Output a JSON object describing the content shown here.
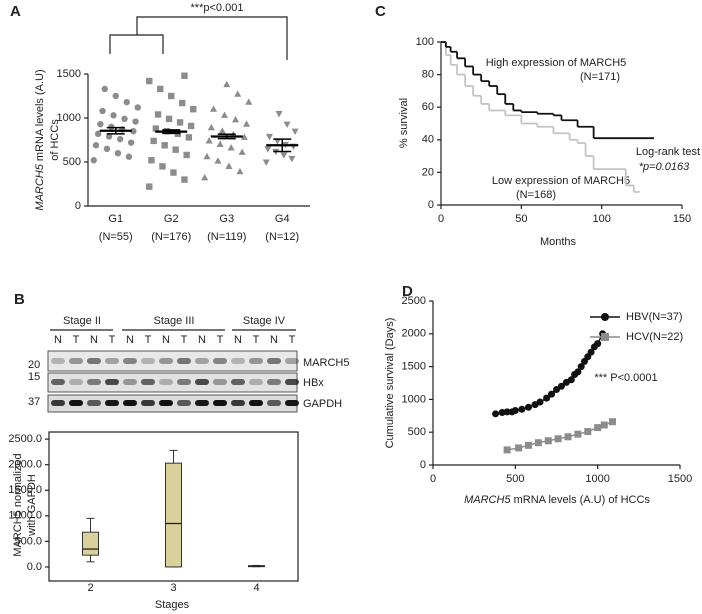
{
  "panel_labels": [
    "A",
    "B",
    "C",
    "D"
  ],
  "blot": {
    "stages": [
      "Stage II",
      "Stage III",
      "Stage IV"
    ],
    "lanes": [
      "N",
      "T",
      "N",
      "T",
      "N",
      "T",
      "N",
      "T",
      "N",
      "T",
      "N",
      "T",
      "N",
      "T"
    ],
    "bands": [
      "MARCH5",
      "HBx",
      "GAPDH"
    ],
    "markers": [
      "15",
      "20",
      "37"
    ]
  },
  "chart_data": [
    {
      "type": "dotplot",
      "annotation": "***p<0.001",
      "ylabel": [
        "MARCH5",
        "mRNA levels (A.U)",
        "of HCCs"
      ],
      "categories": [
        "G1",
        "G2",
        "G3",
        "G4"
      ],
      "sublabels": [
        "(N=55)",
        "(N=176)",
        "(N=119)",
        "(N=12)"
      ],
      "markers": [
        "circle",
        "square",
        "triangle",
        "down-triangle"
      ],
      "color": "#8c8c8c",
      "ylim": [
        0,
        1500
      ],
      "yticks": [
        0,
        500,
        1000,
        1500
      ],
      "groups": [
        {
          "mean": 855,
          "sem": 35,
          "points": [
            520,
            560,
            600,
            650,
            690,
            720,
            760,
            790,
            820,
            850,
            870,
            900,
            930,
            960,
            990,
            1030,
            1080,
            1120,
            1180,
            1250,
            1330
          ]
        },
        {
          "mean": 845,
          "sem": 20,
          "points": [
            220,
            300,
            380,
            450,
            520,
            580,
            640,
            690,
            740,
            780,
            820,
            850,
            880,
            910,
            950,
            990,
            1040,
            1100,
            1170,
            1250,
            1330,
            1420,
            1480
          ]
        },
        {
          "mean": 790,
          "sem": 25,
          "points": [
            320,
            390,
            450,
            510,
            560,
            610,
            660,
            700,
            740,
            780,
            810,
            850,
            890,
            930,
            980,
            1030,
            1100,
            1180,
            1270,
            1380
          ]
        },
        {
          "mean": 690,
          "sem": 70,
          "points": [
            500,
            540,
            580,
            620,
            650,
            680,
            700,
            740,
            790,
            850,
            930,
            1050
          ]
        }
      ]
    },
    {
      "type": "km",
      "xlabel": "Months",
      "ylabel": "% survival",
      "annotations": [
        "High expression of MARCH5",
        "(N=171)",
        "Log-rank test",
        "*p=0.0163",
        "Low expression of MARCH5",
        "(N=168)"
      ],
      "xlim": [
        0,
        150
      ],
      "xticks": [
        0,
        50,
        100,
        150
      ],
      "ylim": [
        0,
        100
      ],
      "yticks": [
        0,
        20,
        40,
        60,
        80,
        100
      ],
      "series": [
        {
          "color": "#111111",
          "x": [
            0,
            3,
            6,
            10,
            15,
            20,
            25,
            30,
            35,
            40,
            45,
            50,
            60,
            70,
            75,
            85,
            95,
            132
          ],
          "values": [
            100,
            97,
            94,
            90,
            85,
            80,
            76,
            73,
            68,
            62,
            58,
            57,
            56,
            55,
            52,
            48,
            41,
            41
          ]
        },
        {
          "color": "#c4c4c4",
          "x": [
            0,
            3,
            6,
            10,
            15,
            20,
            25,
            30,
            40,
            50,
            60,
            70,
            80,
            85,
            90,
            95,
            115,
            120,
            123
          ],
          "values": [
            100,
            92,
            86,
            80,
            73,
            67,
            62,
            58,
            55,
            50,
            48,
            44,
            40,
            38,
            30,
            22,
            12,
            8,
            8
          ]
        }
      ]
    },
    {
      "type": "scatterline",
      "xlabel": [
        "MARCH5",
        "mRNA levels (A.U) of HCCs"
      ],
      "ylabel": "Cumulative survival (Days)",
      "annotation": "*** P<0.0001",
      "legend": "upper right",
      "xlim": [
        0,
        1500
      ],
      "xticks": [
        0,
        500,
        1000,
        1500
      ],
      "ylim": [
        0,
        2500
      ],
      "yticks": [
        0,
        500,
        1000,
        1500,
        2000,
        2500
      ],
      "series": [
        {
          "name": "HBV(N=37)",
          "color": "#111111",
          "marker": "circle",
          "x": [
            380,
            420,
            450,
            480,
            500,
            540,
            580,
            620,
            650,
            690,
            720,
            750,
            780,
            810,
            840,
            860,
            880,
            900,
            920,
            940,
            960,
            980,
            1000,
            1030
          ],
          "values": [
            780,
            800,
            810,
            810,
            830,
            850,
            880,
            920,
            960,
            1020,
            1080,
            1150,
            1200,
            1260,
            1300,
            1380,
            1420,
            1500,
            1580,
            1650,
            1720,
            1800,
            1850,
            2000
          ]
        },
        {
          "name": "HCV(N=22)",
          "color": "#8c8c8c",
          "marker": "square",
          "x": [
            450,
            520,
            580,
            640,
            700,
            760,
            820,
            880,
            940,
            1000,
            1040,
            1090
          ],
          "values": [
            230,
            260,
            300,
            340,
            370,
            400,
            430,
            470,
            510,
            570,
            610,
            660
          ]
        }
      ]
    },
    {
      "type": "box",
      "xlabel": "Stages",
      "ylabel": [
        "MARCH5 normalized",
        "with GAPDH"
      ],
      "color": "#d9d09c",
      "categories": [
        "2",
        "3",
        "4"
      ],
      "ylim": [
        -275,
        2640
      ],
      "yticks": [
        {
          "value": 0,
          "label": "0.0"
        },
        {
          "value": 500,
          "label": "500.0"
        },
        {
          "value": 1000,
          "label": "1000.0"
        },
        {
          "value": 1500,
          "label": "1500.0"
        },
        {
          "value": 2000,
          "label": "2000.0"
        },
        {
          "value": 2500,
          "label": "2500.0"
        }
      ],
      "boxes": [
        {
          "min": 100,
          "q1": 230,
          "median": 350,
          "q3": 680,
          "max": 950
        },
        {
          "min": 0,
          "q1": 0,
          "median": 850,
          "q3": 2030,
          "max": 2280
        },
        {
          "min": 5,
          "q1": 10,
          "median": 15,
          "q3": 25,
          "max": 30
        }
      ]
    }
  ]
}
